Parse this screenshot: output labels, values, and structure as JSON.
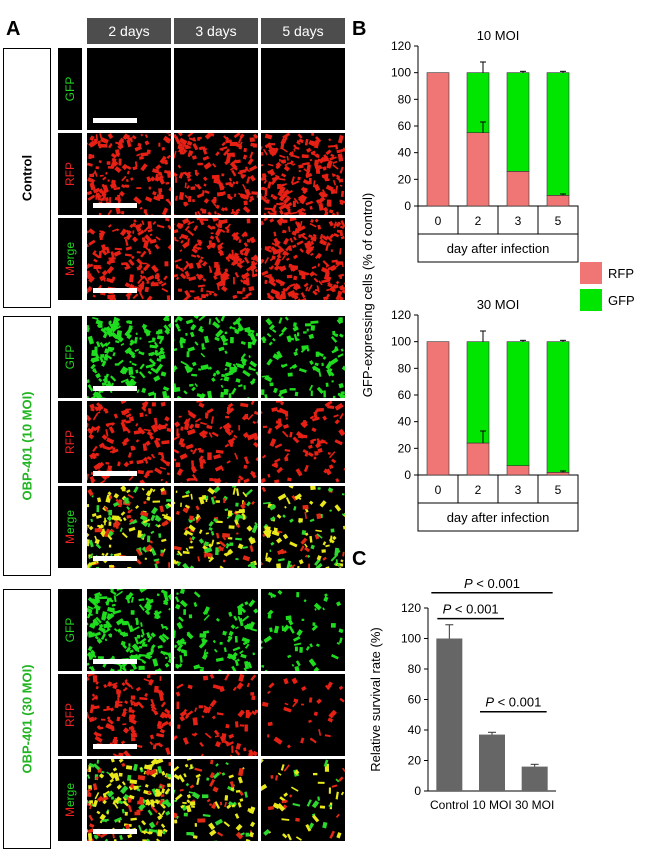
{
  "panel_a": {
    "letter": "A",
    "columns": [
      "2 days",
      "3 days",
      "5 days"
    ],
    "groups": [
      {
        "label": "Control",
        "color": "#000000"
      },
      {
        "label": "OBP-401 (10 MOI)",
        "color": "#22b422"
      },
      {
        "label": "OBP-401 (30 MOI)",
        "color": "#22b422"
      }
    ],
    "rows": {
      "gfp": {
        "label": "GFP",
        "color": "#22d422"
      },
      "rfp": {
        "label": "RFP",
        "color": "#ee2222"
      },
      "merge": {
        "label_parts": [
          "M",
          "erge"
        ],
        "colors": [
          "#ee2222",
          "#22d422"
        ]
      }
    }
  },
  "chart_data": [
    {
      "letter": "B",
      "type": "bar",
      "stacked": true,
      "title": "10 MOI",
      "categories": [
        "0",
        "2",
        "3",
        "5"
      ],
      "series": [
        {
          "name": "RFP",
          "color": "#f07575",
          "values": [
            100,
            55,
            26,
            8
          ]
        },
        {
          "name": "GFP",
          "color": "#00e600",
          "values": [
            0,
            45,
            74,
            92
          ]
        }
      ],
      "error_top": [
        0,
        8,
        1,
        1
      ],
      "error_mid": [
        0,
        8,
        0,
        1
      ],
      "xlabel": "day after infection",
      "ylim": [
        0,
        120
      ],
      "yticks": [
        0,
        20,
        40,
        60,
        80,
        100,
        120
      ]
    },
    {
      "type": "bar",
      "stacked": true,
      "title": "30 MOI",
      "categories": [
        "0",
        "2",
        "3",
        "5"
      ],
      "series": [
        {
          "name": "RFP",
          "color": "#f07575",
          "values": [
            100,
            24,
            7,
            2
          ]
        },
        {
          "name": "GFP",
          "color": "#00e600",
          "values": [
            0,
            76,
            93,
            98
          ]
        }
      ],
      "error_top": [
        0,
        8,
        1,
        1
      ],
      "error_mid": [
        0,
        9,
        0,
        1
      ],
      "xlabel": "day after infection",
      "ylim": [
        0,
        120
      ],
      "yticks": [
        0,
        20,
        40,
        60,
        80,
        100,
        120
      ]
    },
    {
      "letter": "C",
      "type": "bar",
      "categories": [
        "Control",
        "10 MOI",
        "30 MOI"
      ],
      "values": [
        100,
        37,
        16
      ],
      "errors": [
        9,
        1.5,
        1.5
      ],
      "color": "#666666",
      "ylabel": "Relative survival rate (%)",
      "ylim": [
        0,
        120
      ],
      "yticks": [
        0,
        20,
        40,
        60,
        80,
        100,
        120
      ],
      "significance": [
        {
          "from": 0,
          "to": 1,
          "p_italic": "P",
          "p_rest": " < 0.001"
        },
        {
          "from": 0,
          "to": 2,
          "p_italic": "P",
          "p_rest": " < 0.001"
        },
        {
          "from": 1,
          "to": 2,
          "p_italic": "P",
          "p_rest": " < 0.001"
        }
      ]
    }
  ],
  "shared_ylabel": "GFP-expressing cells (% of control)",
  "legend": [
    {
      "name": "RFP",
      "color": "#f07575"
    },
    {
      "name": "GFP",
      "color": "#00e600"
    }
  ]
}
